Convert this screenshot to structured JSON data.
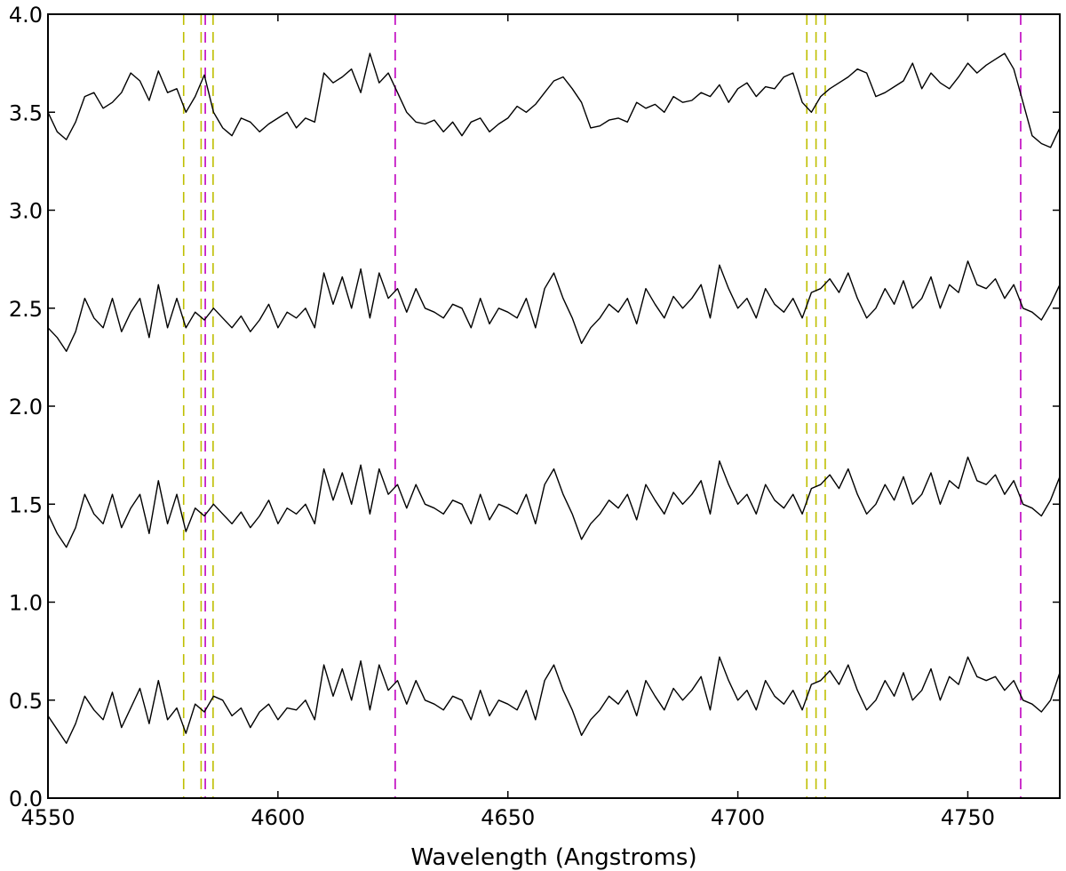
{
  "chart_data": {
    "type": "line",
    "xlabel": "Wavelength (Angstroms)",
    "ylabel": "",
    "title": "",
    "xlim": [
      4550,
      4770
    ],
    "ylim": [
      0.0,
      4.0
    ],
    "x_ticks": [
      4550,
      4600,
      4650,
      4700,
      4750
    ],
    "y_ticks": [
      "0.0",
      "0.5",
      "1.0",
      "1.5",
      "2.0",
      "2.5",
      "3.0",
      "3.5",
      "4.0"
    ],
    "grid": false,
    "legend": "none",
    "line_color": "#000000",
    "reference_lines": [
      {
        "x": 4579.5,
        "color": "#bfbf00",
        "style": "dashed"
      },
      {
        "x": 4583.3,
        "color": "#bfbf00",
        "style": "dashed"
      },
      {
        "x": 4584.2,
        "color": "#bf00bf",
        "style": "dashed"
      },
      {
        "x": 4585.9,
        "color": "#bfbf00",
        "style": "dashed"
      },
      {
        "x": 4625.5,
        "color": "#bf00bf",
        "style": "dashed"
      },
      {
        "x": 4715.0,
        "color": "#bfbf00",
        "style": "dashed"
      },
      {
        "x": 4717.0,
        "color": "#bfbf00",
        "style": "dashed"
      },
      {
        "x": 4719.0,
        "color": "#bfbf00",
        "style": "dashed"
      },
      {
        "x": 4761.5,
        "color": "#bf00bf",
        "style": "dashed"
      }
    ],
    "series": [
      {
        "x": [
          4550,
          4552,
          4554,
          4556,
          4558,
          4560,
          4562,
          4564,
          4566,
          4568,
          4570,
          4572,
          4574,
          4576,
          4578,
          4580,
          4582,
          4584,
          4586,
          4588,
          4590,
          4592,
          4594,
          4596,
          4598,
          4600,
          4602,
          4604,
          4606,
          4608,
          4610,
          4612,
          4614,
          4616,
          4618,
          4620,
          4622,
          4624,
          4626,
          4628,
          4630,
          4632,
          4634,
          4636,
          4638,
          4640,
          4642,
          4644,
          4646,
          4648,
          4650,
          4652,
          4654,
          4656,
          4658,
          4660,
          4662,
          4664,
          4666,
          4668,
          4670,
          4672,
          4674,
          4676,
          4678,
          4680,
          4682,
          4684,
          4686,
          4688,
          4690,
          4692,
          4694,
          4696,
          4698,
          4700,
          4702,
          4704,
          4706,
          4708,
          4710,
          4712,
          4714,
          4716,
          4718,
          4720,
          4722,
          4724,
          4726,
          4728,
          4730,
          4732,
          4734,
          4736,
          4738,
          4740,
          4742,
          4744,
          4746,
          4748,
          4750,
          4752,
          4754,
          4756,
          4758,
          4760,
          4762,
          4764,
          4766,
          4768,
          4770
        ],
        "y": [
          3.5,
          3.4,
          3.36,
          3.45,
          3.58,
          3.6,
          3.52,
          3.55,
          3.6,
          3.7,
          3.66,
          3.56,
          3.71,
          3.6,
          3.62,
          3.5,
          3.58,
          3.69,
          3.5,
          3.42,
          3.38,
          3.47,
          3.45,
          3.4,
          3.44,
          3.47,
          3.5,
          3.42,
          3.47,
          3.45,
          3.7,
          3.65,
          3.68,
          3.72,
          3.6,
          3.8,
          3.65,
          3.7,
          3.6,
          3.5,
          3.45,
          3.44,
          3.46,
          3.4,
          3.45,
          3.38,
          3.45,
          3.47,
          3.4,
          3.44,
          3.47,
          3.53,
          3.5,
          3.54,
          3.6,
          3.66,
          3.68,
          3.62,
          3.55,
          3.42,
          3.43,
          3.46,
          3.47,
          3.45,
          3.55,
          3.52,
          3.54,
          3.5,
          3.58,
          3.55,
          3.56,
          3.6,
          3.58,
          3.64,
          3.55,
          3.62,
          3.65,
          3.58,
          3.63,
          3.62,
          3.68,
          3.7,
          3.55,
          3.5,
          3.58,
          3.62,
          3.65,
          3.68,
          3.72,
          3.7,
          3.58,
          3.6,
          3.63,
          3.66,
          3.75,
          3.62,
          3.7,
          3.65,
          3.62,
          3.68,
          3.75,
          3.7,
          3.74,
          3.77,
          3.8,
          3.72,
          3.55,
          3.38,
          3.34,
          3.32,
          3.42
        ]
      },
      {
        "x": [
          4550,
          4552,
          4554,
          4556,
          4558,
          4560,
          4562,
          4564,
          4566,
          4568,
          4570,
          4572,
          4574,
          4576,
          4578,
          4580,
          4582,
          4584,
          4586,
          4588,
          4590,
          4592,
          4594,
          4596,
          4598,
          4600,
          4602,
          4604,
          4606,
          4608,
          4610,
          4612,
          4614,
          4616,
          4618,
          4620,
          4622,
          4624,
          4626,
          4628,
          4630,
          4632,
          4634,
          4636,
          4638,
          4640,
          4642,
          4644,
          4646,
          4648,
          4650,
          4652,
          4654,
          4656,
          4658,
          4660,
          4662,
          4664,
          4666,
          4668,
          4670,
          4672,
          4674,
          4676,
          4678,
          4680,
          4682,
          4684,
          4686,
          4688,
          4690,
          4692,
          4694,
          4696,
          4698,
          4700,
          4702,
          4704,
          4706,
          4708,
          4710,
          4712,
          4714,
          4716,
          4718,
          4720,
          4722,
          4724,
          4726,
          4728,
          4730,
          4732,
          4734,
          4736,
          4738,
          4740,
          4742,
          4744,
          4746,
          4748,
          4750,
          4752,
          4754,
          4756,
          4758,
          4760,
          4762,
          4764,
          4766,
          4768,
          4770
        ],
        "y": [
          2.4,
          2.35,
          2.28,
          2.38,
          2.55,
          2.45,
          2.4,
          2.55,
          2.38,
          2.48,
          2.55,
          2.35,
          2.62,
          2.4,
          2.55,
          2.4,
          2.48,
          2.44,
          2.5,
          2.45,
          2.4,
          2.46,
          2.38,
          2.44,
          2.52,
          2.4,
          2.48,
          2.45,
          2.5,
          2.4,
          2.68,
          2.52,
          2.66,
          2.5,
          2.7,
          2.45,
          2.68,
          2.55,
          2.6,
          2.48,
          2.6,
          2.5,
          2.48,
          2.45,
          2.52,
          2.5,
          2.4,
          2.55,
          2.42,
          2.5,
          2.48,
          2.45,
          2.55,
          2.4,
          2.6,
          2.68,
          2.55,
          2.45,
          2.32,
          2.4,
          2.45,
          2.52,
          2.48,
          2.55,
          2.42,
          2.6,
          2.52,
          2.45,
          2.56,
          2.5,
          2.55,
          2.62,
          2.45,
          2.72,
          2.6,
          2.5,
          2.55,
          2.45,
          2.6,
          2.52,
          2.48,
          2.55,
          2.45,
          2.58,
          2.6,
          2.65,
          2.58,
          2.68,
          2.55,
          2.45,
          2.5,
          2.6,
          2.52,
          2.64,
          2.5,
          2.55,
          2.66,
          2.5,
          2.62,
          2.58,
          2.74,
          2.62,
          2.6,
          2.65,
          2.55,
          2.62,
          2.5,
          2.48,
          2.44,
          2.52,
          2.62
        ]
      },
      {
        "x": [
          4550,
          4552,
          4554,
          4556,
          4558,
          4560,
          4562,
          4564,
          4566,
          4568,
          4570,
          4572,
          4574,
          4576,
          4578,
          4580,
          4582,
          4584,
          4586,
          4588,
          4590,
          4592,
          4594,
          4596,
          4598,
          4600,
          4602,
          4604,
          4606,
          4608,
          4610,
          4612,
          4614,
          4616,
          4618,
          4620,
          4622,
          4624,
          4626,
          4628,
          4630,
          4632,
          4634,
          4636,
          4638,
          4640,
          4642,
          4644,
          4646,
          4648,
          4650,
          4652,
          4654,
          4656,
          4658,
          4660,
          4662,
          4664,
          4666,
          4668,
          4670,
          4672,
          4674,
          4676,
          4678,
          4680,
          4682,
          4684,
          4686,
          4688,
          4690,
          4692,
          4694,
          4696,
          4698,
          4700,
          4702,
          4704,
          4706,
          4708,
          4710,
          4712,
          4714,
          4716,
          4718,
          4720,
          4722,
          4724,
          4726,
          4728,
          4730,
          4732,
          4734,
          4736,
          4738,
          4740,
          4742,
          4744,
          4746,
          4748,
          4750,
          4752,
          4754,
          4756,
          4758,
          4760,
          4762,
          4764,
          4766,
          4768,
          4770
        ],
        "y": [
          1.45,
          1.35,
          1.28,
          1.38,
          1.55,
          1.45,
          1.4,
          1.55,
          1.38,
          1.48,
          1.55,
          1.35,
          1.62,
          1.4,
          1.55,
          1.36,
          1.48,
          1.44,
          1.5,
          1.45,
          1.4,
          1.46,
          1.38,
          1.44,
          1.52,
          1.4,
          1.48,
          1.45,
          1.5,
          1.4,
          1.68,
          1.52,
          1.66,
          1.5,
          1.7,
          1.45,
          1.68,
          1.55,
          1.6,
          1.48,
          1.6,
          1.5,
          1.48,
          1.45,
          1.52,
          1.5,
          1.4,
          1.55,
          1.42,
          1.5,
          1.48,
          1.45,
          1.55,
          1.4,
          1.6,
          1.68,
          1.55,
          1.45,
          1.32,
          1.4,
          1.45,
          1.52,
          1.48,
          1.55,
          1.42,
          1.6,
          1.52,
          1.45,
          1.56,
          1.5,
          1.55,
          1.62,
          1.45,
          1.72,
          1.6,
          1.5,
          1.55,
          1.45,
          1.6,
          1.52,
          1.48,
          1.55,
          1.45,
          1.58,
          1.6,
          1.65,
          1.58,
          1.68,
          1.55,
          1.45,
          1.5,
          1.6,
          1.52,
          1.64,
          1.5,
          1.55,
          1.66,
          1.5,
          1.62,
          1.58,
          1.74,
          1.62,
          1.6,
          1.65,
          1.55,
          1.62,
          1.5,
          1.48,
          1.44,
          1.52,
          1.64
        ]
      },
      {
        "x": [
          4550,
          4552,
          4554,
          4556,
          4558,
          4560,
          4562,
          4564,
          4566,
          4568,
          4570,
          4572,
          4574,
          4576,
          4578,
          4580,
          4582,
          4584,
          4586,
          4588,
          4590,
          4592,
          4594,
          4596,
          4598,
          4600,
          4602,
          4604,
          4606,
          4608,
          4610,
          4612,
          4614,
          4616,
          4618,
          4620,
          4622,
          4624,
          4626,
          4628,
          4630,
          4632,
          4634,
          4636,
          4638,
          4640,
          4642,
          4644,
          4646,
          4648,
          4650,
          4652,
          4654,
          4656,
          4658,
          4660,
          4662,
          4664,
          4666,
          4668,
          4670,
          4672,
          4674,
          4676,
          4678,
          4680,
          4682,
          4684,
          4686,
          4688,
          4690,
          4692,
          4694,
          4696,
          4698,
          4700,
          4702,
          4704,
          4706,
          4708,
          4710,
          4712,
          4714,
          4716,
          4718,
          4720,
          4722,
          4724,
          4726,
          4728,
          4730,
          4732,
          4734,
          4736,
          4738,
          4740,
          4742,
          4744,
          4746,
          4748,
          4750,
          4752,
          4754,
          4756,
          4758,
          4760,
          4762,
          4764,
          4766,
          4768,
          4770
        ],
        "y": [
          0.42,
          0.35,
          0.28,
          0.38,
          0.52,
          0.45,
          0.4,
          0.54,
          0.36,
          0.46,
          0.56,
          0.38,
          0.6,
          0.4,
          0.46,
          0.33,
          0.48,
          0.44,
          0.52,
          0.5,
          0.42,
          0.46,
          0.36,
          0.44,
          0.48,
          0.4,
          0.46,
          0.45,
          0.5,
          0.4,
          0.68,
          0.52,
          0.66,
          0.5,
          0.7,
          0.45,
          0.68,
          0.55,
          0.6,
          0.48,
          0.6,
          0.5,
          0.48,
          0.45,
          0.52,
          0.5,
          0.4,
          0.55,
          0.42,
          0.5,
          0.48,
          0.45,
          0.55,
          0.4,
          0.6,
          0.68,
          0.55,
          0.45,
          0.32,
          0.4,
          0.45,
          0.52,
          0.48,
          0.55,
          0.42,
          0.6,
          0.52,
          0.45,
          0.56,
          0.5,
          0.55,
          0.62,
          0.45,
          0.72,
          0.6,
          0.5,
          0.55,
          0.45,
          0.6,
          0.52,
          0.48,
          0.55,
          0.45,
          0.58,
          0.6,
          0.65,
          0.58,
          0.68,
          0.55,
          0.45,
          0.5,
          0.6,
          0.52,
          0.64,
          0.5,
          0.55,
          0.66,
          0.5,
          0.62,
          0.58,
          0.72,
          0.62,
          0.6,
          0.62,
          0.55,
          0.6,
          0.5,
          0.48,
          0.44,
          0.5,
          0.64
        ]
      }
    ]
  }
}
